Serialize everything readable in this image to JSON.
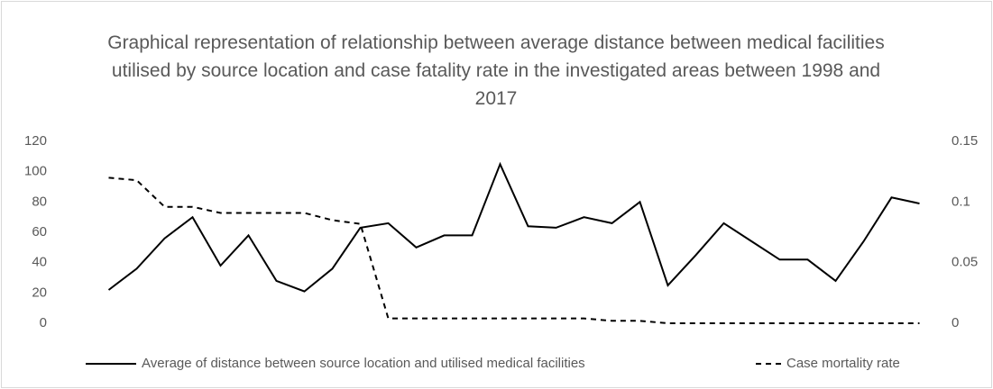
{
  "chart_data": {
    "type": "line",
    "title": "Graphical representation of relationship between average distance between medical facilities utilised by source location and case fatality rate in the investigated areas between 1998 and 2017",
    "categories": [
      null,
      null,
      null,
      null,
      null,
      null,
      null,
      null,
      null,
      null,
      null,
      null,
      null,
      null,
      null,
      null,
      null,
      null,
      null,
      null,
      null,
      null,
      null,
      null,
      null,
      null,
      null,
      null,
      null,
      null
    ],
    "series": [
      {
        "name": "Average of distance between source location and utilised medical facilities",
        "color": "#000000",
        "line_style": "solid",
        "values": [
          22,
          36,
          56,
          70,
          38,
          58,
          28,
          21,
          36,
          63,
          66,
          50,
          58,
          58,
          105,
          64,
          63,
          70,
          66,
          80,
          25,
          45,
          66,
          54,
          42,
          42,
          28,
          54,
          83,
          79
        ]
      },
      {
        "name": "Case mortality rate",
        "color": "#000000",
        "line_style": "dashed",
        "axis": "y2",
        "values": [
          0.12,
          0.118,
          0.096,
          0.096,
          0.091,
          0.091,
          0.091,
          0.091,
          0.085,
          0.082,
          0.004,
          0.004,
          0.004,
          0.004,
          0.004,
          0.004,
          0.004,
          0.004,
          0.002,
          0.002,
          0,
          0,
          0,
          0,
          0,
          0,
          0,
          0,
          0,
          0
        ]
      }
    ],
    "ylim": [
      0,
      120
    ],
    "yticks": [
      0,
      20,
      40,
      60,
      80,
      100,
      120
    ],
    "y2lim": [
      0,
      0.15
    ],
    "y2ticks": [
      0,
      0.05,
      0.1,
      0.15
    ],
    "grid": false,
    "legend": "bottom"
  }
}
